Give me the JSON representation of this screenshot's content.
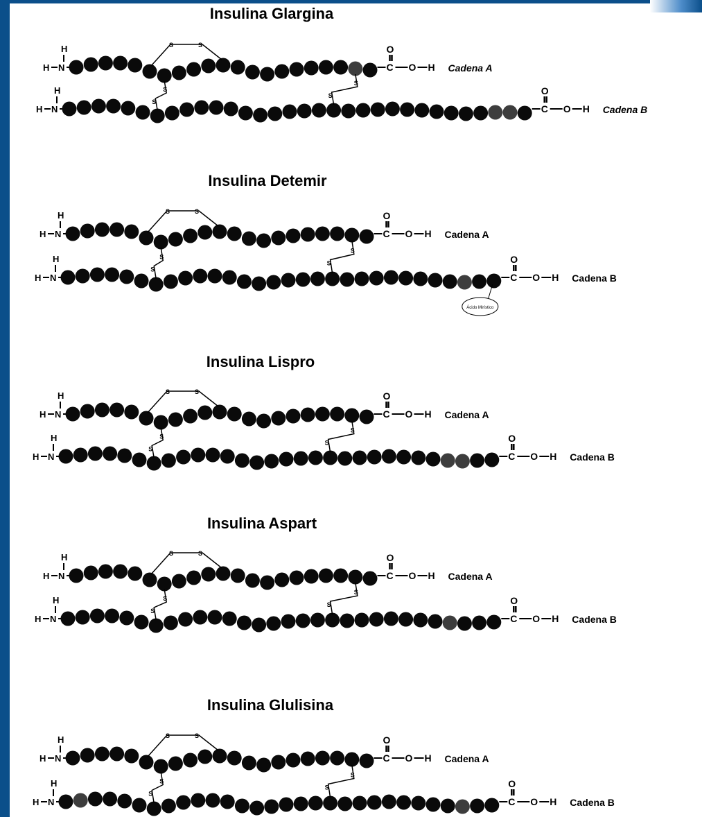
{
  "colors": {
    "frame": "#0b4f8a",
    "residue": "#0a0a0a",
    "marked_residue": "#3d3d3d",
    "text": "#000000"
  },
  "labels": {
    "h": "H",
    "n": "N",
    "c": "C",
    "o": "O",
    "s": "S",
    "chain_a": "Cadena A",
    "chain_b": "Cadena B"
  },
  "panels": [
    {
      "title": "Insulina Glargina",
      "italic": true,
      "a_marked": [
        20
      ],
      "b_marked": [
        30,
        31
      ],
      "b_extra": 2,
      "tag": ""
    },
    {
      "title": "Insulina Detemir",
      "italic": false,
      "a_marked": [],
      "b_marked": [
        28
      ],
      "b_extra": 0,
      "tag": "Ácido Mirístico"
    },
    {
      "title": "Insulina Lispro",
      "italic": false,
      "a_marked": [],
      "b_marked": [
        27,
        28
      ],
      "b_extra": 0,
      "tag": ""
    },
    {
      "title": "Insulina Aspart",
      "italic": false,
      "a_marked": [],
      "b_marked": [
        27
      ],
      "b_extra": 0,
      "tag": ""
    },
    {
      "title": "Insulina Glulisina",
      "italic": false,
      "a_marked": [],
      "b_marked": [
        2,
        28
      ],
      "b_extra": 0,
      "tag": ""
    }
  ]
}
